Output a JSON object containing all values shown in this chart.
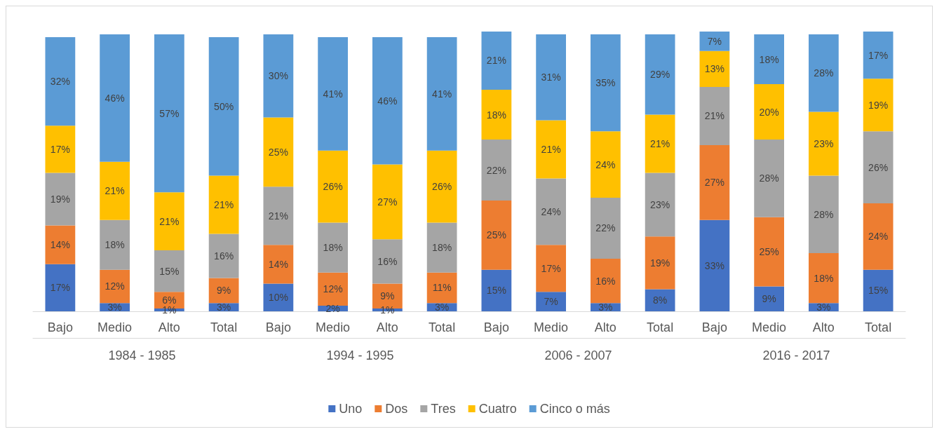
{
  "chart_data": {
    "type": "bar",
    "stacked": true,
    "legend": "bottom",
    "grid": false,
    "categories": [
      "Bajo",
      "Medio",
      "Alto",
      "Total",
      "Bajo",
      "Medio",
      "Alto",
      "Total",
      "Bajo",
      "Medio",
      "Alto",
      "Total",
      "Bajo",
      "Medio",
      "Alto",
      "Total"
    ],
    "annotations": [
      "1984 - 1985",
      "1994 - 1995",
      "2006 - 2007",
      "2016 - 2017"
    ],
    "series": [
      {
        "name": "Uno",
        "color": "#4472c4",
        "values": [
          17,
          3,
          1,
          3,
          10,
          2,
          1,
          3,
          15,
          7,
          3,
          8,
          33,
          9,
          3,
          15
        ],
        "value_labels": [
          "17%",
          "3%",
          "1%",
          "3%",
          "10%",
          "2%",
          "1%",
          "3%",
          "15%",
          "7%",
          "3%",
          "8%",
          "33%",
          "9%",
          "3%",
          "15%"
        ]
      },
      {
        "name": "Dos",
        "color": "#ed7d31",
        "values": [
          14,
          12,
          6,
          9,
          14,
          12,
          9,
          11,
          25,
          17,
          16,
          19,
          27,
          25,
          18,
          24
        ],
        "value_labels": [
          "14%",
          "12%",
          "6%",
          "9%",
          "14%",
          "12%",
          "9%",
          "11%",
          "25%",
          "17%",
          "16%",
          "19%",
          "27%",
          "25%",
          "18%",
          "24%"
        ]
      },
      {
        "name": "Tres",
        "color": "#a5a5a5",
        "values": [
          19,
          18,
          15,
          16,
          21,
          18,
          16,
          18,
          22,
          24,
          22,
          23,
          21,
          28,
          28,
          26
        ],
        "value_labels": [
          "19%",
          "18%",
          "15%",
          "16%",
          "21%",
          "18%",
          "16%",
          "18%",
          "22%",
          "24%",
          "22%",
          "23%",
          "21%",
          "28%",
          "28%",
          "26%"
        ]
      },
      {
        "name": "Cuatro",
        "color": "#ffc000",
        "values": [
          17,
          21,
          21,
          21,
          25,
          26,
          27,
          26,
          18,
          21,
          24,
          21,
          13,
          20,
          23,
          19
        ],
        "value_labels": [
          "17%",
          "21%",
          "21%",
          "21%",
          "25%",
          "26%",
          "27%",
          "26%",
          "18%",
          "21%",
          "24%",
          "21%",
          "13%",
          "20%",
          "23%",
          "19%"
        ]
      },
      {
        "name": "Cinco o más",
        "color": "#5b9bd5",
        "values": [
          32,
          46,
          57,
          50,
          30,
          41,
          46,
          41,
          21,
          31,
          35,
          29,
          7,
          18,
          28,
          17
        ],
        "value_labels": [
          "32%",
          "46%",
          "57%",
          "50%",
          "30%",
          "41%",
          "46%",
          "41%",
          "21%",
          "31%",
          "35%",
          "29%",
          "7%",
          "18%",
          "28%",
          "17%"
        ]
      }
    ]
  }
}
